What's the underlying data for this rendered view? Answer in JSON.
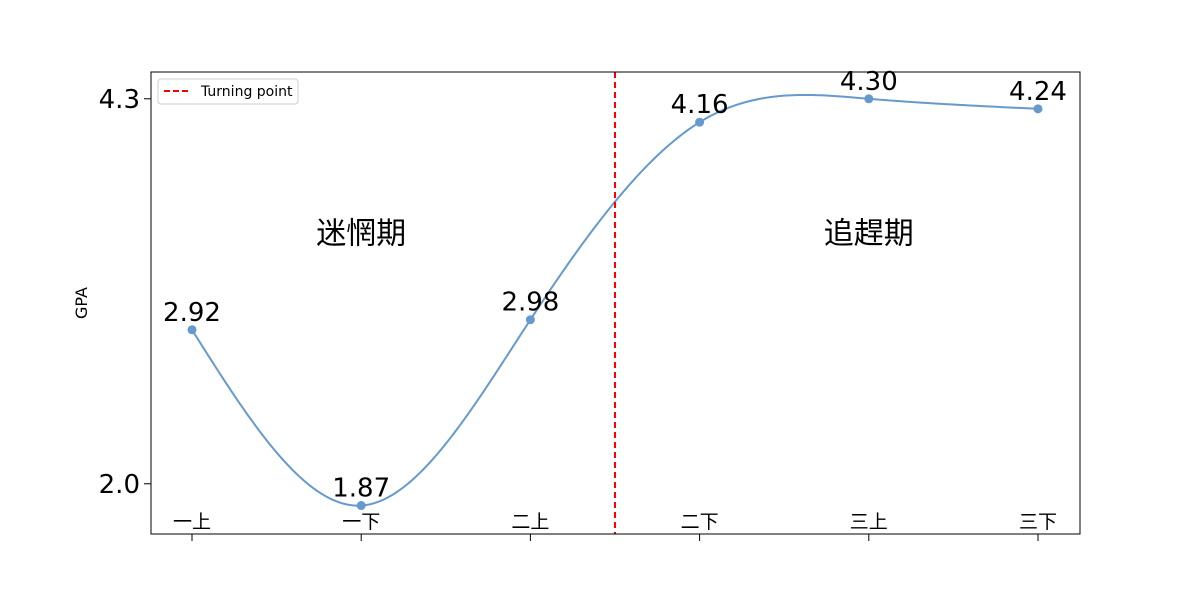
{
  "chart_data": {
    "type": "line",
    "categories": [
      "一上",
      "一下",
      "二上",
      "二下",
      "三上",
      "三下"
    ],
    "series": [
      {
        "values": [
          2.92,
          1.87,
          2.98,
          4.16,
          4.3,
          4.24
        ],
        "color": "#6699cc",
        "point_labels": [
          "2.92",
          "1.87",
          "2.98",
          "4.16",
          "4.30",
          "4.24"
        ]
      }
    ],
    "ylabel": "GPA",
    "yticks": [
      {
        "value": 2.0,
        "label": "2.0"
      },
      {
        "value": 4.3,
        "label": "4.3"
      }
    ],
    "ylim": [
      1.7,
      4.46
    ],
    "smooth": true,
    "grid": false,
    "turning_point": {
      "between": [
        "二上",
        "二下"
      ],
      "color": "#ff0000",
      "style": "dashed"
    },
    "legend": {
      "placement": "top-left",
      "entries": [
        {
          "label": "Turning point",
          "color": "#ff0000",
          "style": "dashed"
        }
      ]
    },
    "annotations": [
      {
        "text": "迷惘期",
        "at_category": "一下",
        "y": 3.5
      },
      {
        "text": "追趕期",
        "at_category": "三上",
        "y": 3.5
      }
    ]
  }
}
